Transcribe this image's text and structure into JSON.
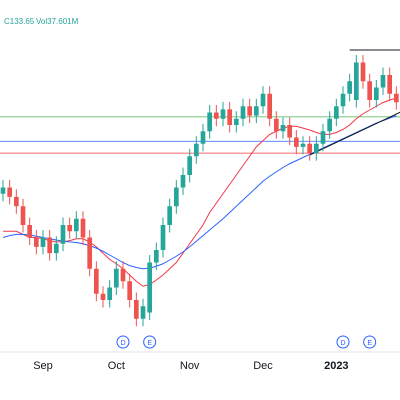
{
  "chart_data": {
    "type": "candlestick",
    "header": [
      "C133.65",
      "Vol37.601M"
    ],
    "categories": [
      null,
      null,
      null,
      null,
      null,
      null,
      "Sep",
      null,
      null,
      null,
      null,
      null,
      null,
      null,
      null,
      null,
      null,
      "Oct",
      null,
      null,
      null,
      null,
      null,
      null,
      null,
      null,
      null,
      null,
      "Nov",
      null,
      null,
      null,
      null,
      null,
      null,
      null,
      null,
      null,
      null,
      "Dec",
      null,
      null,
      null,
      null,
      null,
      null,
      null,
      null,
      null,
      null,
      "2023",
      null,
      null,
      null,
      null,
      null,
      null,
      null,
      null,
      null
    ],
    "open": [
      119,
      120,
      118.5,
      117,
      114,
      112,
      110.5,
      112,
      109.5,
      111,
      114,
      113,
      115,
      112,
      107,
      103,
      102,
      104,
      107,
      105,
      102,
      99,
      100,
      108,
      110,
      114,
      117,
      120,
      122,
      125,
      127,
      129,
      132,
      131,
      132.5,
      130,
      131,
      133,
      131.5,
      133,
      135,
      131,
      129,
      130,
      128,
      126.5,
      127,
      125.5,
      127,
      129,
      131,
      133,
      135,
      134,
      140,
      137,
      134,
      136,
      138,
      135
    ],
    "high": [
      121.2,
      121.2,
      119.7,
      118.2,
      115.2,
      113.2,
      113.2,
      113.2,
      112.2,
      115.2,
      115.2,
      116.2,
      116.2,
      113.2,
      108.2,
      104.2,
      105.2,
      108.2,
      108.2,
      106.2,
      103.2,
      102.2,
      109.2,
      111.2,
      115.2,
      118.2,
      121.2,
      123.2,
      126.2,
      128.2,
      130.2,
      133.2,
      133.2,
      133.7,
      133.7,
      132.2,
      134.2,
      134.2,
      134.2,
      136.2,
      136.2,
      132.2,
      131.2,
      131.2,
      129.2,
      128.2,
      128.2,
      128.2,
      130.2,
      132.2,
      134.2,
      136.2,
      138.2,
      141.2,
      141.2,
      138.2,
      137.2,
      139.2,
      139.2,
      136.2
    ],
    "low": [
      117.8,
      117.3,
      115.8,
      112.8,
      110.8,
      109.3,
      109.3,
      108.3,
      108.3,
      109.8,
      111.8,
      111.8,
      110.8,
      105.8,
      101.8,
      100.8,
      100.8,
      102.8,
      103.8,
      100.8,
      97.8,
      97.8,
      98.8,
      106.8,
      108.8,
      112.8,
      115.8,
      118.8,
      120.8,
      123.8,
      125.8,
      127.8,
      129.8,
      129.8,
      128.8,
      128.8,
      129.8,
      130.3,
      130.3,
      131.8,
      129.8,
      127.8,
      127.8,
      126.8,
      125.3,
      125.3,
      124.3,
      124.3,
      125.8,
      127.8,
      129.8,
      131.8,
      133.8,
      132.8,
      135.8,
      132.8,
      132.8,
      134.8,
      133.8,
      132.45
    ],
    "close": [
      120,
      118.5,
      117,
      114,
      112,
      110.5,
      112,
      109.5,
      111,
      114,
      113,
      115,
      112,
      107,
      103,
      102,
      104,
      107,
      105,
      102,
      99,
      101,
      108,
      110,
      114,
      117,
      120,
      122,
      125,
      127,
      129,
      132,
      131,
      132.5,
      130,
      131,
      133,
      131.5,
      133,
      135,
      131,
      129,
      130,
      128,
      126.5,
      127,
      125.5,
      127,
      129,
      131,
      133,
      135,
      137,
      140,
      137,
      134,
      136,
      138,
      135,
      133.65
    ],
    "up_color": "#26a69a",
    "down_color": "#ef5350",
    "series": [
      {
        "color": "#f23645",
        "values": [
          113,
          113,
          113,
          112.5,
          112,
          112,
          111.8,
          111.5,
          111.3,
          111.3,
          111.5,
          111.8,
          111.8,
          111.3,
          110.5,
          109.5,
          108.5,
          107.8,
          107,
          106,
          105,
          104.2,
          104.5,
          105.2,
          106,
          107,
          108,
          109.5,
          111,
          112.5,
          114,
          116,
          117.5,
          119,
          120.5,
          122,
          123.5,
          125,
          126.5,
          127.5,
          128.5,
          129,
          129.5,
          129.8,
          129.8,
          129.5,
          129.2,
          128.8,
          128.5,
          128.5,
          128.8,
          129.3,
          130,
          131,
          131.8,
          132.4,
          133,
          133.6,
          134,
          134.3
        ]
      },
      {
        "color": "#2962ff",
        "values": [
          112,
          112.3,
          112.5,
          112.5,
          112.4,
          112.2,
          112,
          111.8,
          111.6,
          111.4,
          111.3,
          111.2,
          111,
          110.7,
          110.3,
          109.8,
          109.2,
          108.6,
          108,
          107.5,
          107.2,
          107,
          107.1,
          107.4,
          107.8,
          108.4,
          109,
          109.7,
          110.5,
          111.4,
          112.3,
          113.2,
          114.1,
          115,
          116,
          117,
          118,
          119,
          120,
          121,
          121.8,
          122.5,
          123.2,
          123.8,
          124.3,
          124.8,
          125.3,
          125.8,
          126.3,
          126.8,
          127.3,
          127.8,
          128.3,
          128.8,
          129.3,
          129.8,
          130.3,
          130.7,
          131.1,
          131.5
        ]
      }
    ],
    "levels": [
      {
        "value": 131.3,
        "color": "#4caf50"
      },
      {
        "value": 127.4,
        "color": "#2962ff"
      },
      {
        "value": 125.5,
        "color": "#f23645"
      }
    ],
    "trendlines": [
      {
        "x": [
          52,
          59.7
        ],
        "y": [
          142,
          142
        ],
        "color": "#131722"
      },
      {
        "x": [
          46,
          59.7
        ],
        "y": [
          125.2,
          132.1
        ],
        "color": "#131722"
      }
    ],
    "events": [
      null,
      null,
      null,
      null,
      null,
      null,
      null,
      null,
      null,
      null,
      null,
      null,
      null,
      null,
      null,
      null,
      null,
      null,
      "D",
      null,
      null,
      null,
      "E",
      null,
      null,
      null,
      null,
      null,
      null,
      null,
      null,
      null,
      null,
      null,
      null,
      null,
      null,
      null,
      null,
      null,
      null,
      null,
      null,
      null,
      null,
      null,
      null,
      null,
      null,
      null,
      null,
      "D",
      null,
      null,
      null,
      "E",
      null,
      null,
      null,
      null
    ],
    "ylim": [
      94,
      150
    ]
  }
}
